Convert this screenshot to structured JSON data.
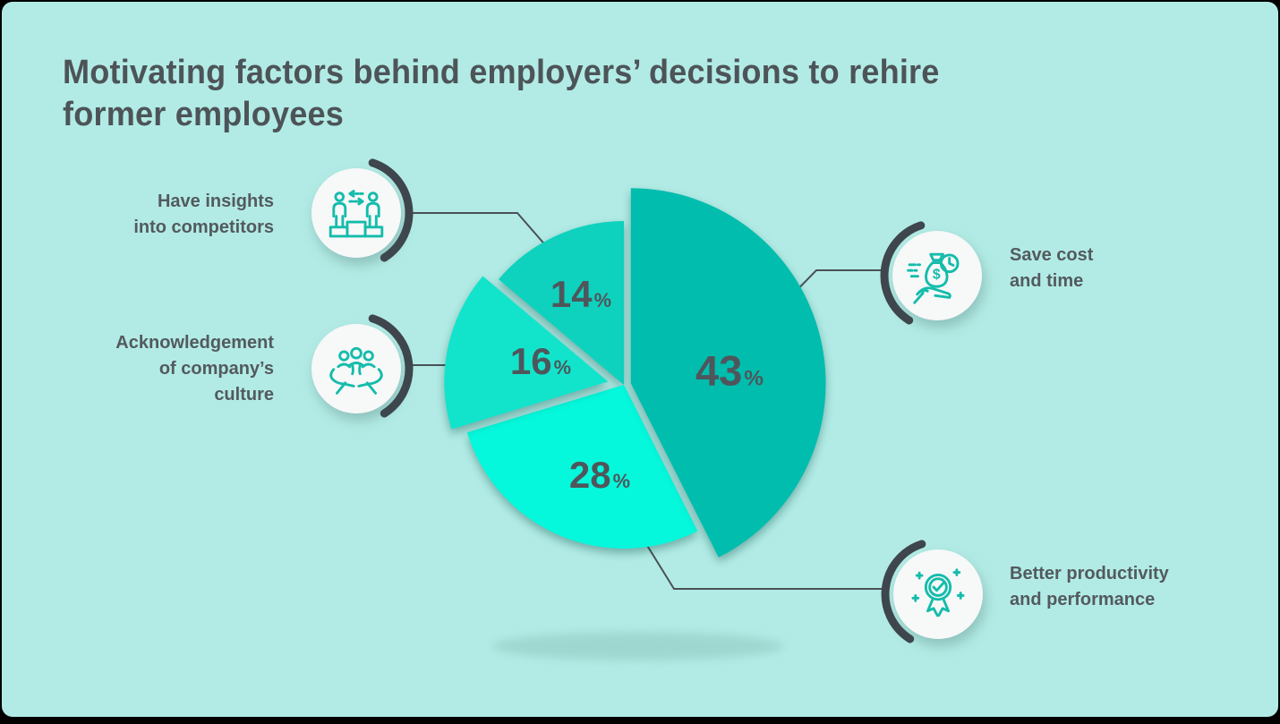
{
  "title": {
    "lines": [
      "Motivating factors behind employers’ decisions to rehire",
      "former employees"
    ]
  },
  "chart_data": {
    "type": "pie",
    "title": "Motivating factors behind employers’ decisions to rehire former employees",
    "unit": "%",
    "direction": "clockwise",
    "start_angle_deg": 0,
    "legend_position": "callouts-around-pie",
    "slices": [
      {
        "label": "Save cost and time",
        "value": 43,
        "color": "#00bdae",
        "emphasized": true
      },
      {
        "label": "Better productivity and performance",
        "value": 28,
        "color": "#05f8dc",
        "emphasized": false
      },
      {
        "label": "Acknowledgement of company's culture",
        "value": 16,
        "color": "#12e4cc",
        "emphasized": false
      },
      {
        "label": "Have insights into competitors",
        "value": 14,
        "color": "#0ed2be",
        "emphasized": false
      }
    ]
  },
  "callouts": {
    "insights": {
      "lines": [
        "Have insights",
        "into competitors"
      ],
      "icon": "podium-competitors-icon"
    },
    "culture": {
      "lines": [
        "Acknowledgement",
        "of company’s",
        "culture"
      ],
      "icon": "hands-holding-people-icon"
    },
    "save": {
      "lines": [
        "Save cost",
        "and time"
      ],
      "icon": "money-bag-clock-icon"
    },
    "productivity": {
      "lines": [
        "Better productivity",
        "and performance"
      ],
      "icon": "award-ribbon-icon"
    }
  },
  "colors": {
    "bg": "#b2ebe5",
    "frame": "#000000",
    "title_color": "#4d5458",
    "label_color": "#535a5e",
    "value_color": "#4f565b",
    "line_color": "#4a5156",
    "arc_color": "#3f464d",
    "icon_stroke": "#14bcab",
    "badge_fill": "#f7f8f8"
  }
}
